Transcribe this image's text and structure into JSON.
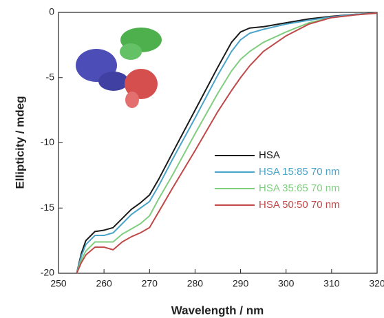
{
  "chart_data": {
    "type": "line",
    "x_label": "Wavelength / nm",
    "y_label": "Ellipticity / mdeg",
    "x": [
      254,
      255,
      256,
      258,
      260,
      262,
      264,
      266,
      268,
      270,
      272,
      275,
      280,
      285,
      288,
      290,
      292,
      295,
      300,
      305,
      310,
      315,
      320
    ],
    "series": [
      {
        "name": "HSA",
        "color": "#1a1a1a",
        "values": [
          -20,
          -18.5,
          -17.5,
          -16.8,
          -16.7,
          -16.5,
          -15.8,
          -15.1,
          -14.6,
          -14.0,
          -12.8,
          -10.8,
          -7.5,
          -4.2,
          -2.3,
          -1.5,
          -1.2,
          -1.1,
          -0.8,
          -0.5,
          -0.3,
          -0.15,
          -0.05
        ]
      },
      {
        "name": "HSA 15:85 70 nm",
        "color": "#4aa3c8",
        "values": [
          -20,
          -18.7,
          -17.8,
          -17.1,
          -17.1,
          -16.9,
          -16.2,
          -15.5,
          -15.0,
          -14.5,
          -13.3,
          -11.3,
          -8.1,
          -4.8,
          -3.0,
          -2.1,
          -1.6,
          -1.3,
          -0.9,
          -0.6,
          -0.35,
          -0.15,
          -0.05
        ]
      },
      {
        "name": "HSA 35:65 70 nm",
        "color": "#7fce7f",
        "values": [
          -20,
          -19.0,
          -18.3,
          -17.6,
          -17.6,
          -17.6,
          -17.0,
          -16.6,
          -16.2,
          -15.6,
          -14.3,
          -12.5,
          -9.3,
          -6.2,
          -4.5,
          -3.6,
          -3.0,
          -2.3,
          -1.5,
          -0.8,
          -0.4,
          -0.2,
          -0.05
        ]
      },
      {
        "name": "HSA 50:50 70 nm",
        "color": "#c04848",
        "values": [
          -20,
          -19.2,
          -18.6,
          -18.0,
          -18.0,
          -18.2,
          -17.6,
          -17.2,
          -16.9,
          -16.5,
          -15.3,
          -13.5,
          -10.6,
          -7.6,
          -6.0,
          -5.0,
          -4.1,
          -3.0,
          -1.8,
          -0.9,
          -0.4,
          -0.2,
          -0.05
        ]
      }
    ],
    "xlim": [
      250,
      320
    ],
    "xticks": [
      250,
      260,
      270,
      280,
      290,
      300,
      310,
      320
    ],
    "ylim": [
      -20,
      0
    ],
    "yticks": [
      0,
      -5,
      -10,
      -15,
      -20
    ]
  }
}
